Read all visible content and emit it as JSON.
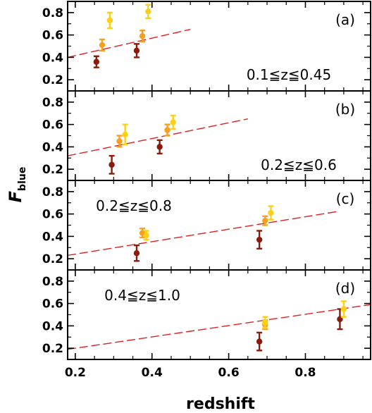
{
  "chart_data": {
    "type": "scatter",
    "xlabel": "redshift",
    "ylabel": "F",
    "ylabel_sub": "blue",
    "xlim": [
      0.18,
      0.97
    ],
    "ylim": [
      0.1,
      0.9
    ],
    "x_ticks": [
      "0.2",
      "0.4",
      "0.6",
      "0.8"
    ],
    "x_tick_values": [
      0.2,
      0.4,
      0.6,
      0.8
    ],
    "y_ticks": [
      "0.2",
      "0.4",
      "0.6",
      "0.8"
    ],
    "y_tick_values": [
      0.2,
      0.4,
      0.6,
      0.8
    ],
    "colors": {
      "dark": "#8b1a0a",
      "orange": "#f5a020",
      "yellow": "#fcd017",
      "fit": "#e02020",
      "frame": "#000000"
    },
    "panels": [
      {
        "label": "(a)",
        "range_label": "0.1≦z≦0.45",
        "fit": {
          "x": [
            0.18,
            0.5
          ],
          "y": [
            0.4,
            0.65
          ]
        },
        "points": [
          {
            "x": 0.255,
            "y": 0.36,
            "err": 0.05,
            "color": "dark"
          },
          {
            "x": 0.36,
            "y": 0.46,
            "err": 0.06,
            "color": "dark"
          },
          {
            "x": 0.27,
            "y": 0.51,
            "err": 0.05,
            "color": "orange"
          },
          {
            "x": 0.375,
            "y": 0.59,
            "err": 0.05,
            "color": "orange"
          },
          {
            "x": 0.29,
            "y": 0.73,
            "err": 0.07,
            "color": "yellow"
          },
          {
            "x": 0.39,
            "y": 0.81,
            "err": 0.06,
            "color": "yellow"
          }
        ]
      },
      {
        "label": "(b)",
        "range_label": "0.2≦z≦0.6",
        "fit": {
          "x": [
            0.18,
            0.65
          ],
          "y": [
            0.32,
            0.65
          ]
        },
        "points": [
          {
            "x": 0.295,
            "y": 0.24,
            "err": 0.08,
            "color": "dark"
          },
          {
            "x": 0.42,
            "y": 0.4,
            "err": 0.06,
            "color": "dark"
          },
          {
            "x": 0.315,
            "y": 0.45,
            "err": 0.05,
            "color": "orange"
          },
          {
            "x": 0.44,
            "y": 0.55,
            "err": 0.05,
            "color": "orange"
          },
          {
            "x": 0.33,
            "y": 0.51,
            "err": 0.09,
            "color": "yellow"
          },
          {
            "x": 0.455,
            "y": 0.62,
            "err": 0.06,
            "color": "yellow"
          }
        ]
      },
      {
        "label": "(c)",
        "range_label": "0.2≦z≦0.8",
        "fit": {
          "x": [
            0.18,
            0.88
          ],
          "y": [
            0.23,
            0.62
          ]
        },
        "points": [
          {
            "x": 0.36,
            "y": 0.25,
            "err": 0.07,
            "color": "dark"
          },
          {
            "x": 0.68,
            "y": 0.37,
            "err": 0.08,
            "color": "dark"
          },
          {
            "x": 0.375,
            "y": 0.43,
            "err": 0.04,
            "color": "orange"
          },
          {
            "x": 0.695,
            "y": 0.54,
            "err": 0.04,
            "color": "orange"
          },
          {
            "x": 0.385,
            "y": 0.41,
            "err": 0.04,
            "color": "yellow"
          },
          {
            "x": 0.71,
            "y": 0.61,
            "err": 0.06,
            "color": "yellow"
          }
        ]
      },
      {
        "label": "(d)",
        "range_label": "0.4≦z≦1.0",
        "fit": {
          "x": [
            0.18,
            0.97
          ],
          "y": [
            0.19,
            0.59
          ]
        },
        "points": [
          {
            "x": 0.68,
            "y": 0.26,
            "err": 0.08,
            "color": "dark"
          },
          {
            "x": 0.89,
            "y": 0.46,
            "err": 0.09,
            "color": "dark"
          },
          {
            "x": 0.695,
            "y": 0.41,
            "err": 0.04,
            "color": "orange"
          },
          {
            "x": 0.695,
            "y": 0.43,
            "err": 0.05,
            "color": "yellow"
          },
          {
            "x": 0.9,
            "y": 0.55,
            "err": 0.07,
            "color": "yellow"
          }
        ]
      }
    ]
  }
}
